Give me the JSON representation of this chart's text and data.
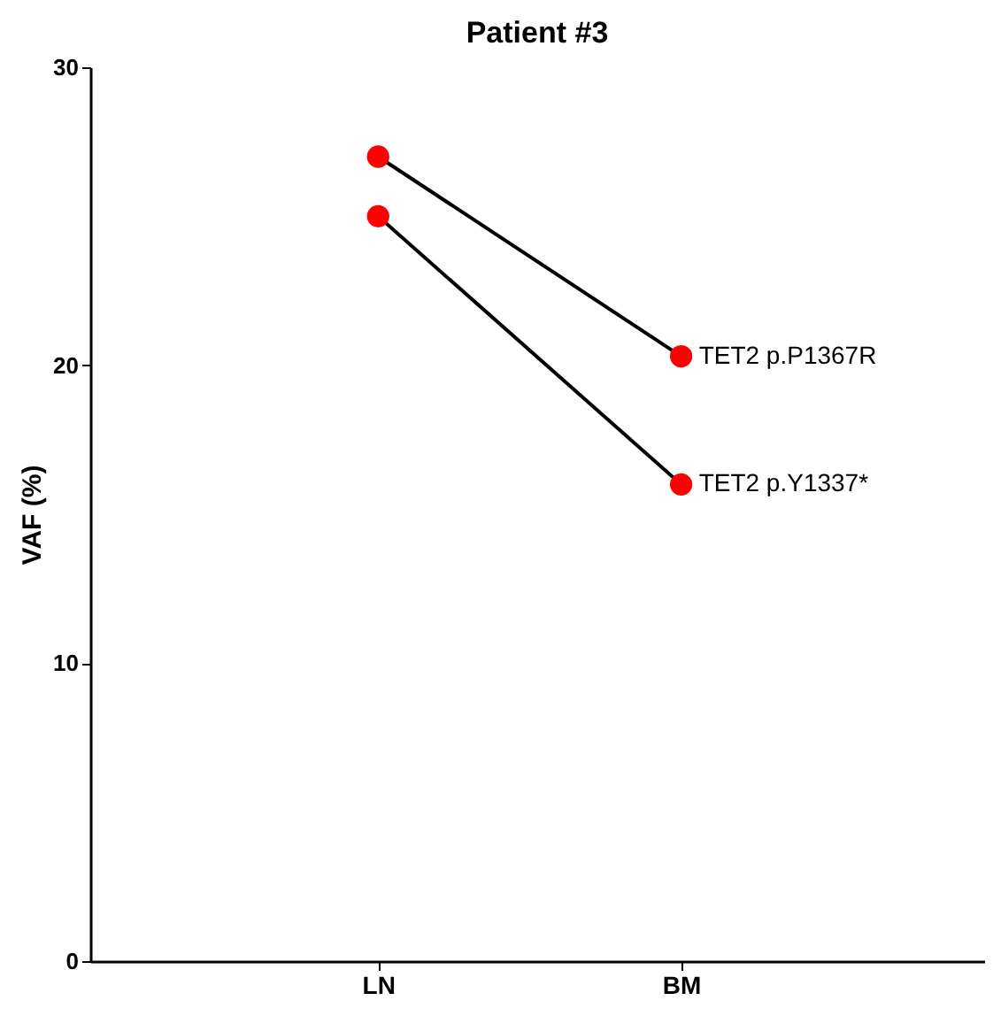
{
  "chart_data": {
    "type": "line",
    "title": "Patient #3",
    "ylabel": "VAF (%)",
    "categories": [
      "LN",
      "BM"
    ],
    "series": [
      {
        "name": "TET2 p.P1367R",
        "color": "#ff0000",
        "values": [
          27.0,
          20.3
        ]
      },
      {
        "name": "TET2 p.Y1337*",
        "color": "#ff0000",
        "values": [
          25.0,
          16.0
        ]
      }
    ],
    "ylim": [
      0,
      30
    ],
    "yticks": [
      0,
      10,
      20,
      30
    ],
    "grid": false,
    "legend": false,
    "marker": "circle",
    "line_style": "solid"
  }
}
